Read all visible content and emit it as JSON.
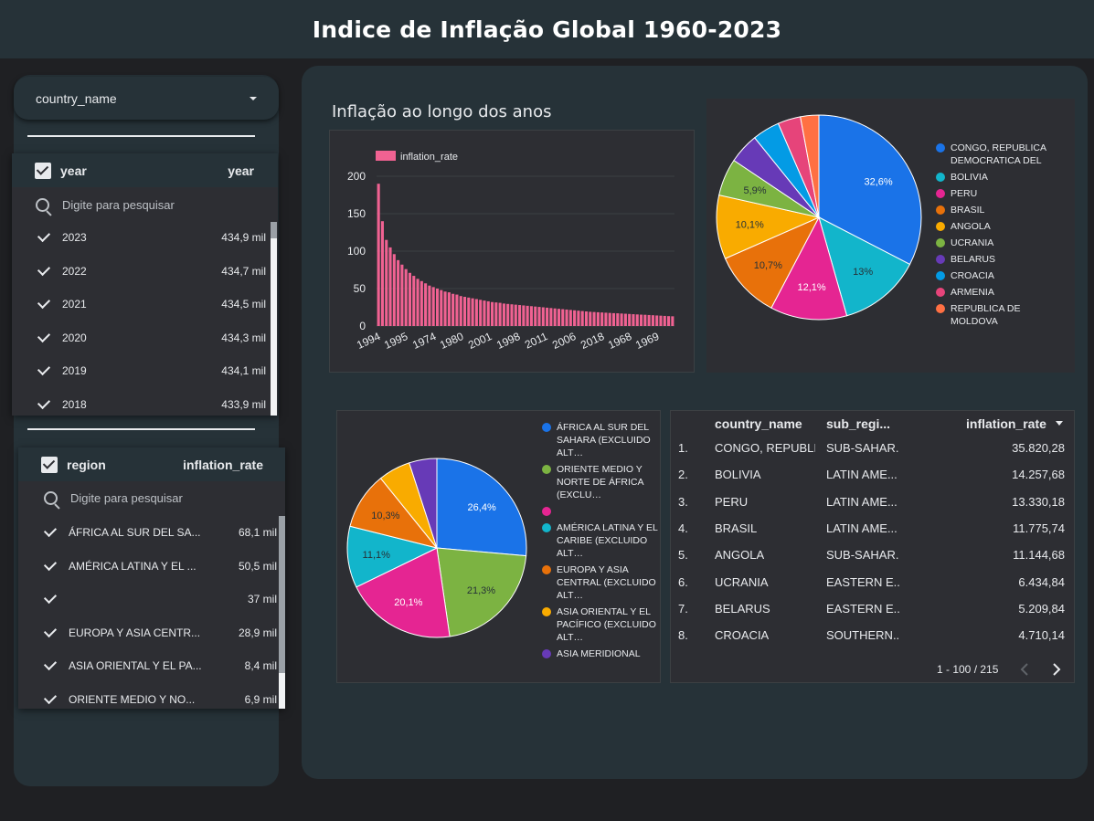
{
  "header": {
    "title": "Indice de Inflação Global 1960-2023"
  },
  "filters": {
    "country_dropdown": {
      "label": "country_name"
    },
    "year_filter": {
      "header_left": "year",
      "header_right": "year",
      "search_placeholder": "Digite para pesquisar",
      "rows": [
        {
          "label": "2023",
          "value": "434,9 mil"
        },
        {
          "label": "2022",
          "value": "434,7 mil"
        },
        {
          "label": "2021",
          "value": "434,5 mil"
        },
        {
          "label": "2020",
          "value": "434,3 mil"
        },
        {
          "label": "2019",
          "value": "434,1 mil"
        },
        {
          "label": "2018",
          "value": "433,9 mil"
        }
      ]
    },
    "region_filter": {
      "header_left": "region",
      "header_right": "inflation_rate",
      "search_placeholder": "Digite para pesquisar",
      "rows": [
        {
          "label": "ÁFRICA AL SUR DEL SA...",
          "value": "68,1 mil"
        },
        {
          "label": "AMÉRICA LATINA Y EL ...",
          "value": "50,5 mil"
        },
        {
          "label": "",
          "value": "37 mil"
        },
        {
          "label": "EUROPA Y ASIA CENTR...",
          "value": "28,9 mil"
        },
        {
          "label": "ASIA ORIENTAL Y EL PA...",
          "value": "8,4 mil"
        },
        {
          "label": "ORIENTE MEDIO Y NO...",
          "value": "6,9 mil"
        }
      ]
    }
  },
  "bar_chart_title": "Inflação ao longo dos anos",
  "chart_data": [
    {
      "type": "bar",
      "legend": "inflation_rate",
      "x_tick_labels": [
        "1994",
        "1995",
        "1974",
        "1980",
        "2001",
        "1998",
        "2011",
        "2006",
        "2018",
        "1968",
        "1969"
      ],
      "y_ticks": [
        0,
        50,
        100,
        150,
        200
      ],
      "ylim": [
        0,
        200
      ],
      "grid": true,
      "values": [
        190,
        140,
        115,
        105,
        96,
        88,
        82,
        76,
        71,
        67,
        63,
        60,
        57,
        54,
        52,
        50,
        48,
        46,
        45,
        43,
        42,
        40,
        39,
        38,
        37,
        36,
        35,
        34,
        33,
        32,
        31.5,
        31,
        30,
        29.5,
        29,
        28.5,
        28,
        27.5,
        27,
        26.5,
        26,
        25.5,
        25,
        24.5,
        24,
        23.5,
        23,
        22.5,
        22,
        21.5,
        21,
        20.5,
        20,
        19.5,
        19,
        18.7,
        18.4,
        18.1,
        17.8,
        17.5,
        17.2,
        17,
        16.7,
        16.4,
        16.1,
        15.8,
        15.5,
        15.2,
        15,
        14.7,
        14.4,
        14.1,
        13.8,
        13.5,
        13.2,
        13
      ],
      "color": "#f06292"
    },
    {
      "type": "pie",
      "legend_position": "right",
      "slices": [
        {
          "name": "CONGO, REPUBLICA DEMOCRATICA DEL",
          "value": 32.6,
          "label": "32,6%",
          "color": "#1a73e8"
        },
        {
          "name": "BOLIVIA",
          "value": 13.0,
          "label": "13%",
          "color": "#12b5cb"
        },
        {
          "name": "PERU",
          "value": 12.1,
          "label": "12,1%",
          "color": "#e52592"
        },
        {
          "name": "BRASIL",
          "value": 10.7,
          "label": "10,7%",
          "color": "#e8710a"
        },
        {
          "name": "ANGOLA",
          "value": 10.1,
          "label": "10,1%",
          "color": "#f9ab00"
        },
        {
          "name": "UCRANIA",
          "value": 5.9,
          "label": "5,9%",
          "color": "#7cb342"
        },
        {
          "name": "BELARUS",
          "value": 4.8,
          "label": "",
          "color": "#673ab7"
        },
        {
          "name": "CROACIA",
          "value": 4.3,
          "label": "",
          "color": "#039be5"
        },
        {
          "name": "ARMENIA",
          "value": 3.6,
          "label": "",
          "color": "#e6447a"
        },
        {
          "name": "REPUBLICA DE MOLDOVA",
          "value": 2.9,
          "label": "",
          "color": "#ff7043"
        }
      ]
    },
    {
      "type": "pie",
      "legend_position": "right",
      "slices": [
        {
          "name": "ÁFRICA AL SUR DEL SAHARA (EXCLUIDO ALT…",
          "value": 26.4,
          "label": "26,4%",
          "color": "#1a73e8"
        },
        {
          "name": "ORIENTE MEDIO Y NORTE DE ÁFRICA (EXCLU…",
          "value": 21.3,
          "label": "21,3%",
          "color": "#7cb342"
        },
        {
          "name": "",
          "value": 20.1,
          "label": "20,1%",
          "color": "#e52592"
        },
        {
          "name": "AMÉRICA LATINA Y EL CARIBE (EXCLUIDO ALT…",
          "value": 11.1,
          "label": "11,1%",
          "color": "#12b5cb"
        },
        {
          "name": "EUROPA Y ASIA CENTRAL (EXCLUIDO ALT…",
          "value": 10.3,
          "label": "10,3%",
          "color": "#e8710a"
        },
        {
          "name": "ASIA ORIENTAL Y EL PACÍFICO (EXCLUIDO ALT…",
          "value": 5.8,
          "label": "",
          "color": "#f9ab00"
        },
        {
          "name": "ASIA MERIDIONAL",
          "value": 5.0,
          "label": "",
          "color": "#673ab7"
        }
      ]
    }
  ],
  "table": {
    "columns": [
      "country_name",
      "sub_regi...",
      "inflation_rate"
    ],
    "rows": [
      [
        "1.",
        "CONGO, REPUBLI...",
        "SUB-SAHAR...",
        "35.820,28"
      ],
      [
        "2.",
        "BOLIVIA",
        "LATIN AME...",
        "14.257,68"
      ],
      [
        "3.",
        "PERU",
        "LATIN AME...",
        "13.330,18"
      ],
      [
        "4.",
        "BRASIL",
        "LATIN AME...",
        "11.775,74"
      ],
      [
        "5.",
        "ANGOLA",
        "SUB-SAHAR...",
        "11.144,68"
      ],
      [
        "6.",
        "UCRANIA",
        "EASTERN E...",
        "6.434,84"
      ],
      [
        "7.",
        "BELARUS",
        "EASTERN E...",
        "5.209,84"
      ],
      [
        "8.",
        "CROACIA",
        "SOUTHERN...",
        "4.710,14"
      ]
    ],
    "pagination": "1 - 100 / 215"
  }
}
